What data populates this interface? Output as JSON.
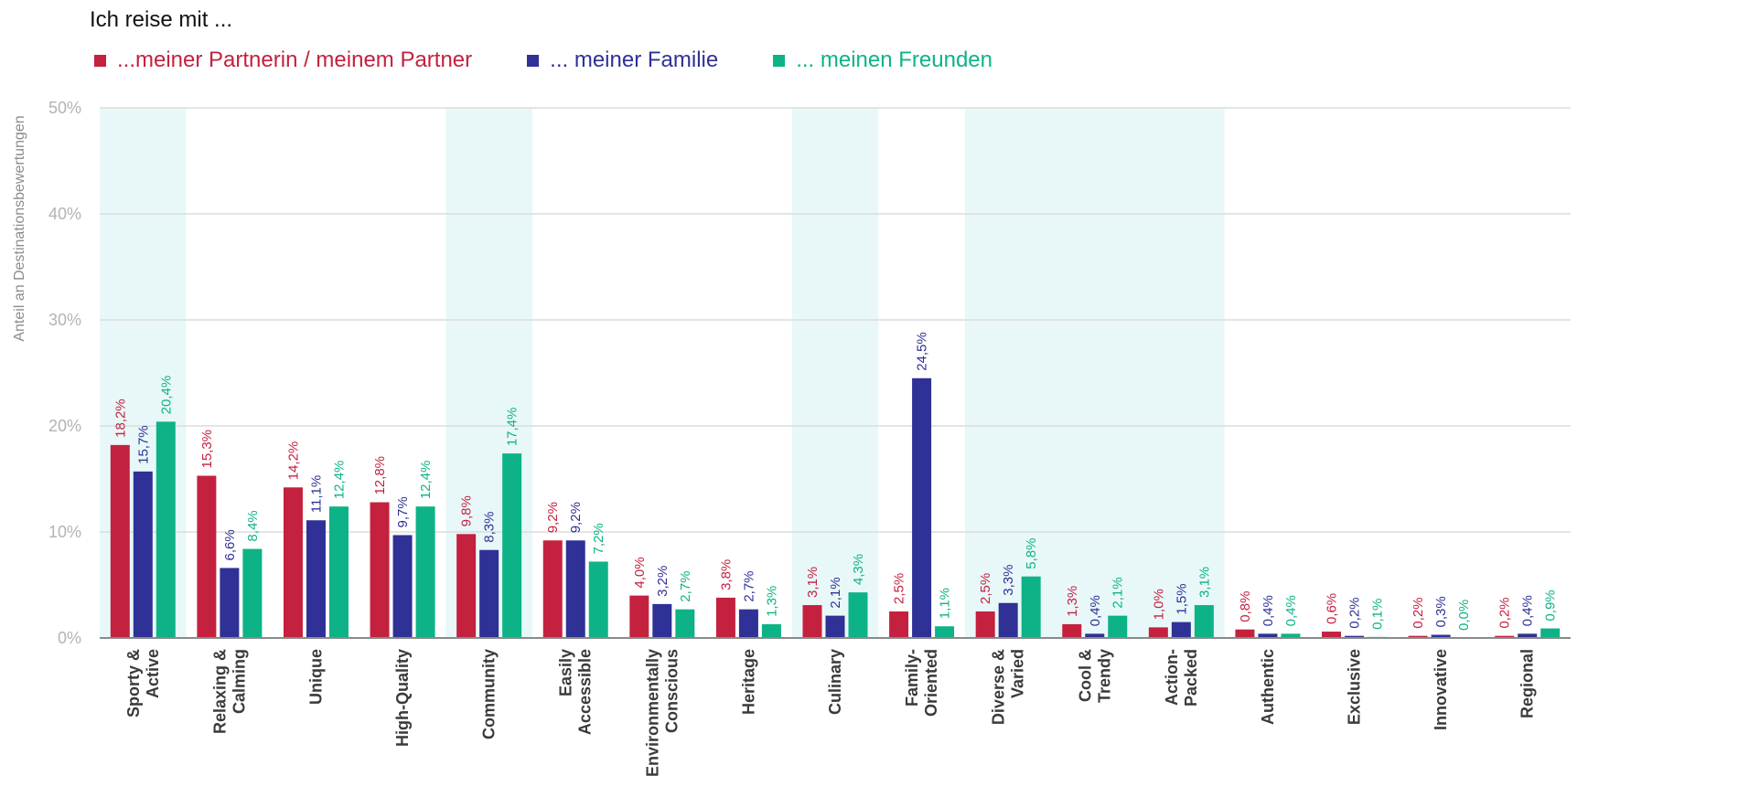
{
  "title": "Ich reise mit ...",
  "colors": {
    "highlight": "#e8f8f8"
  },
  "chart_data": {
    "type": "bar",
    "ylabel": "Anteil an Destinationsbewertungen",
    "ylim": [
      0,
      50
    ],
    "yticks": [
      "0%",
      "10%",
      "20%",
      "30%",
      "40%",
      "50%"
    ],
    "grid": true,
    "legend_position": "top-left",
    "categories": [
      [
        "Sporty &",
        "Active"
      ],
      [
        "Relaxing &",
        "Calming"
      ],
      [
        "Unique"
      ],
      [
        "High-Quality"
      ],
      [
        "Community"
      ],
      [
        "Easily",
        "Accessible"
      ],
      [
        "Environmentally",
        "Conscious"
      ],
      [
        "Heritage"
      ],
      [
        "Culinary"
      ],
      [
        "Family-",
        "Oriented"
      ],
      [
        "Diverse &",
        "Varied"
      ],
      [
        "Cool &",
        "Trendy"
      ],
      [
        "Action-",
        "Packed"
      ],
      [
        "Authentic"
      ],
      [
        "Exclusive"
      ],
      [
        "Innovative"
      ],
      [
        "Regional"
      ]
    ],
    "highlighted_categories": [
      0,
      4,
      8,
      10,
      11,
      12
    ],
    "series": [
      {
        "name": "...meiner Partnerin / meinem Partner",
        "color": "#c4213f",
        "values": [
          18.2,
          15.3,
          14.2,
          12.8,
          9.8,
          9.2,
          4.0,
          3.8,
          3.1,
          2.5,
          2.5,
          1.3,
          1.0,
          0.8,
          0.6,
          0.2,
          0.2
        ],
        "labels": [
          "18,2%",
          "15,3%",
          "14,2%",
          "12,8%",
          "9,8%",
          "9,2%",
          "4,0%",
          "3,8%",
          "3,1%",
          "2,5%",
          "2,5%",
          "1,3%",
          "1,0%",
          "0,8%",
          "0,6%",
          "0,2%",
          "0,2%"
        ]
      },
      {
        "name": "... meiner Familie",
        "color": "#2f3196",
        "values": [
          15.7,
          6.6,
          11.1,
          9.7,
          8.3,
          9.2,
          3.2,
          2.7,
          2.1,
          24.5,
          3.3,
          0.4,
          1.5,
          0.4,
          0.2,
          0.3,
          0.4
        ],
        "labels": [
          "15,7%",
          "6,6%",
          "11,1%",
          "9,7%",
          "8,3%",
          "9,2%",
          "3,2%",
          "2,7%",
          "2,1%",
          "24,5%",
          "3,3%",
          "0,4%",
          "1,5%",
          "0,4%",
          "0,2%",
          "0,3%",
          "0,4%"
        ]
      },
      {
        "name": "... meinen Freunden",
        "color": "#0db386",
        "values": [
          20.4,
          8.4,
          12.4,
          12.4,
          17.4,
          7.2,
          2.7,
          1.3,
          4.3,
          1.1,
          5.8,
          2.1,
          3.1,
          0.4,
          0.1,
          0.0,
          0.9
        ],
        "labels": [
          "20,4%",
          "8,4%",
          "12,4%",
          "12,4%",
          "17,4%",
          "7,2%",
          "2,7%",
          "1,3%",
          "4,3%",
          "1,1%",
          "5,8%",
          "2,1%",
          "3,1%",
          "0,4%",
          "0,1%",
          "0,0%",
          "0,9%"
        ]
      }
    ]
  }
}
